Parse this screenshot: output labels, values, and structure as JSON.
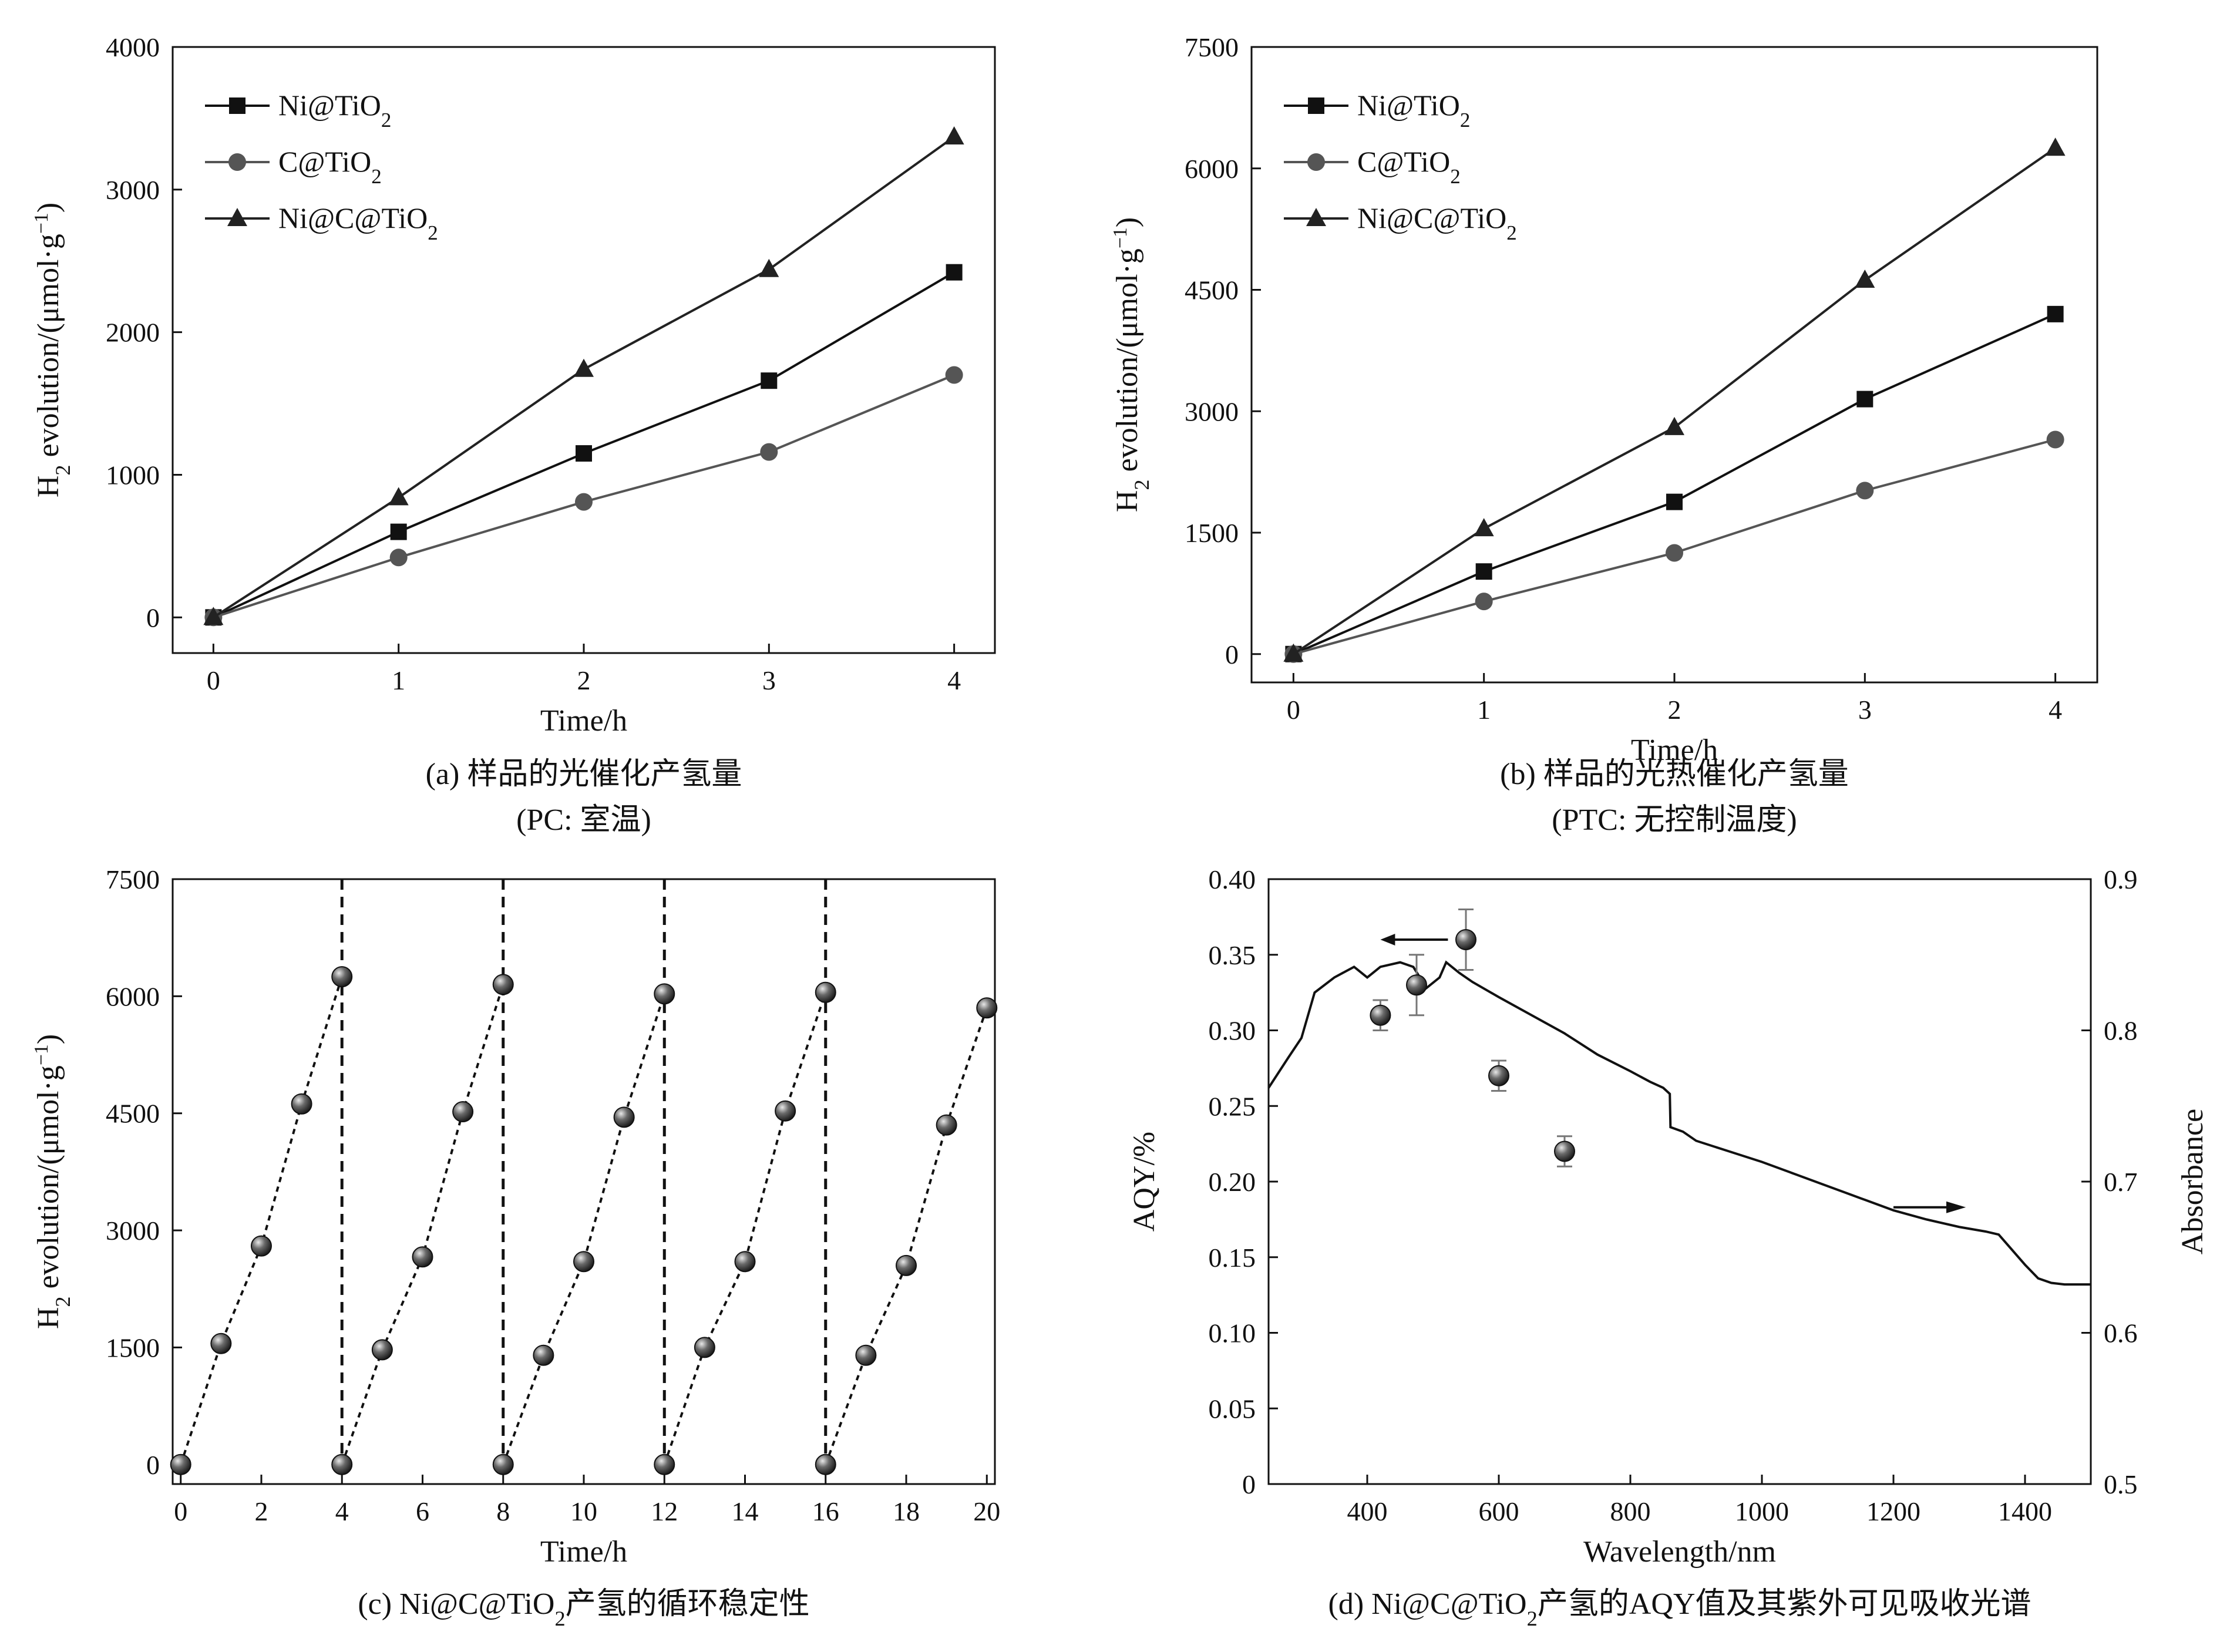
{
  "chart_data": [
    {
      "type": "line",
      "panel": "a",
      "caption": [
        "(a) 样品的光催化产氢量",
        "(PC: 室温)"
      ],
      "xlabel": "Time/h",
      "ylabel": "H2 evolution/(μmol·g−1)",
      "xlim": [
        -0.22,
        4.22
      ],
      "ylim": [
        -250,
        4000
      ],
      "xticks": [
        0,
        1,
        2,
        3,
        4
      ],
      "yticks": [
        0,
        1000,
        2000,
        3000,
        4000
      ],
      "x": [
        0,
        1,
        2,
        3,
        4
      ],
      "legend": "top-left",
      "series": [
        {
          "name": "Ni@TiO2",
          "color": "#111111",
          "marker": "square",
          "values": [
            0,
            600,
            1150,
            1660,
            2420
          ]
        },
        {
          "name": "C@TiO2",
          "color": "#555555",
          "marker": "circle",
          "values": [
            0,
            420,
            810,
            1160,
            1700
          ]
        },
        {
          "name": "Ni@C@TiO2",
          "color": "#222222",
          "marker": "triangle",
          "values": [
            0,
            840,
            1740,
            2440,
            3370
          ]
        }
      ]
    },
    {
      "type": "line",
      "panel": "b",
      "caption": [
        "(b) 样品的光热催化产氢量",
        "(PTC: 无控制温度)"
      ],
      "xlabel": "Time/h",
      "ylabel": "H2 evolution/(μmol·g−1)",
      "xlim": [
        -0.22,
        4.22
      ],
      "ylim": [
        -350,
        7500
      ],
      "xticks": [
        0,
        1,
        2,
        3,
        4
      ],
      "yticks": [
        0,
        1500,
        3000,
        4500,
        6000,
        7500
      ],
      "x": [
        0,
        1,
        2,
        3,
        4
      ],
      "legend": "top-left",
      "series": [
        {
          "name": "Ni@TiO2",
          "color": "#111111",
          "marker": "square",
          "values": [
            0,
            1020,
            1880,
            3150,
            4200
          ]
        },
        {
          "name": "C@TiO2",
          "color": "#555555",
          "marker": "circle",
          "values": [
            0,
            650,
            1250,
            2020,
            2650
          ]
        },
        {
          "name": "Ni@C@TiO2",
          "color": "#222222",
          "marker": "triangle",
          "values": [
            0,
            1550,
            2800,
            4620,
            6250
          ]
        }
      ]
    },
    {
      "type": "scatter",
      "panel": "c",
      "caption": [
        "(c) Ni@C@TiO2产氢的循环稳定性"
      ],
      "xlabel": "Time/h",
      "ylabel": "H2 evolution/(μmol·g−1)",
      "xlim": [
        -0.2,
        20.2
      ],
      "ylim": [
        -250,
        7500
      ],
      "xticks": [
        0,
        2,
        4,
        6,
        8,
        10,
        12,
        14,
        16,
        18,
        20
      ],
      "yticks": [
        0,
        1500,
        3000,
        4500,
        6000,
        7500
      ],
      "cycle_boundaries": [
        4,
        8,
        12,
        16
      ],
      "cycles": [
        {
          "x": [
            0,
            1,
            2,
            3,
            4
          ],
          "y": [
            0,
            1550,
            2800,
            4620,
            6250
          ]
        },
        {
          "x": [
            4,
            5,
            6,
            7,
            8
          ],
          "y": [
            0,
            1470,
            2660,
            4520,
            6150
          ]
        },
        {
          "x": [
            8,
            9,
            10,
            11,
            12
          ],
          "y": [
            0,
            1400,
            2600,
            4450,
            6030
          ]
        },
        {
          "x": [
            12,
            13,
            14,
            15,
            16
          ],
          "y": [
            0,
            1500,
            2600,
            4530,
            6050
          ]
        },
        {
          "x": [
            16,
            17,
            18,
            19,
            20
          ],
          "y": [
            0,
            1400,
            2550,
            4350,
            5850
          ]
        }
      ]
    },
    {
      "type": "scatter",
      "panel": "d",
      "caption": [
        "(d) Ni@C@TiO2产氢的AQY值及其紫外可见吸收光谱"
      ],
      "xlabel": "Wavelength/nm",
      "ylabel": "AQY/%",
      "y2label": "Absorbance",
      "xlim": [
        250,
        1500
      ],
      "ylim": [
        0,
        0.4
      ],
      "y2lim": [
        0.5,
        0.9
      ],
      "xticks": [
        400,
        600,
        800,
        1000,
        1200,
        1400
      ],
      "yticks": [
        "0",
        "0.05",
        "0.10",
        "0.15",
        "0.20",
        "0.25",
        "0.30",
        "0.35",
        "0.40"
      ],
      "y2ticks": [
        "0.5",
        "0.6",
        "0.7",
        "0.8",
        "0.9"
      ],
      "aqy_points": [
        {
          "x": 420,
          "y": 0.31,
          "err": 0.01
        },
        {
          "x": 475,
          "y": 0.33,
          "err": 0.02
        },
        {
          "x": 550,
          "y": 0.36,
          "err": 0.02
        },
        {
          "x": 600,
          "y": 0.27,
          "err": 0.01
        },
        {
          "x": 700,
          "y": 0.22,
          "err": 0.01
        }
      ],
      "absorbance_curve": {
        "x": [
          250,
          280,
          300,
          310,
          320,
          350,
          380,
          400,
          420,
          450,
          470,
          490,
          510,
          520,
          540,
          560,
          600,
          650,
          700,
          750,
          800,
          830,
          850,
          860,
          861,
          880,
          900,
          950,
          1000,
          1050,
          1100,
          1150,
          1200,
          1250,
          1300,
          1340,
          1360,
          1380,
          1400,
          1420,
          1440,
          1460,
          1480,
          1500
        ],
        "y": [
          0.762,
          0.782,
          0.795,
          0.81,
          0.825,
          0.835,
          0.842,
          0.835,
          0.842,
          0.845,
          0.842,
          0.828,
          0.835,
          0.845,
          0.838,
          0.832,
          0.822,
          0.81,
          0.798,
          0.784,
          0.773,
          0.766,
          0.762,
          0.758,
          0.736,
          0.733,
          0.727,
          0.72,
          0.713,
          0.705,
          0.697,
          0.689,
          0.681,
          0.675,
          0.67,
          0.667,
          0.665,
          0.655,
          0.645,
          0.636,
          0.633,
          0.632,
          0.632,
          0.632
        ]
      }
    }
  ]
}
